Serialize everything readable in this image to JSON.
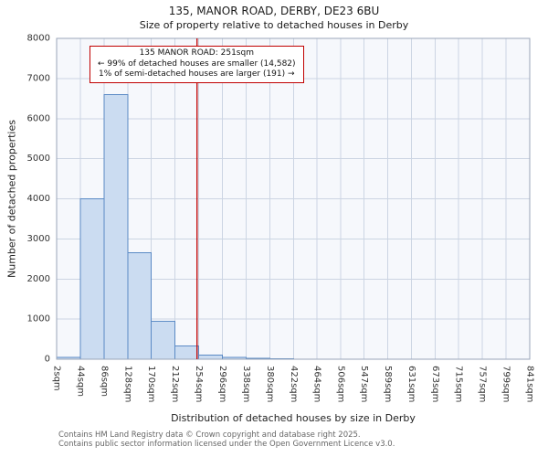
{
  "chart_data": {
    "type": "bar",
    "title": "135, MANOR ROAD, DERBY, DE23 6BU",
    "subtitle": "Size of property relative to detached houses in Derby",
    "xlabel": "Distribution of detached houses by size in Derby",
    "ylabel": "Number of detached properties",
    "bin_edges_sqm": [
      2,
      44,
      86,
      128,
      170,
      212,
      254,
      296,
      338,
      380,
      422,
      464,
      506,
      547,
      589,
      631,
      673,
      715,
      757,
      799,
      841
    ],
    "tick_labels": [
      "2sqm",
      "44sqm",
      "86sqm",
      "128sqm",
      "170sqm",
      "212sqm",
      "254sqm",
      "296sqm",
      "338sqm",
      "380sqm",
      "422sqm",
      "464sqm",
      "506sqm",
      "547sqm",
      "589sqm",
      "631sqm",
      "673sqm",
      "715sqm",
      "757sqm",
      "799sqm",
      "841sqm"
    ],
    "values": [
      50,
      4000,
      6600,
      2650,
      950,
      330,
      100,
      50,
      20,
      10,
      5,
      3,
      2,
      1,
      0,
      0,
      0,
      0,
      0,
      0
    ],
    "ylim": [
      0,
      8000
    ],
    "yticks": [
      0,
      1000,
      2000,
      3000,
      4000,
      5000,
      6000,
      7000,
      8000
    ],
    "grid": true,
    "legend": null,
    "marker": {
      "value_sqm": 251,
      "color": "#c00000"
    },
    "annotation": {
      "line1": "135 MANOR ROAD: 251sqm",
      "line2": "← 99% of detached houses are smaller (14,582)",
      "line3": "1% of semi-detached houses are larger (191) →"
    },
    "colors": {
      "bar_fill": "#cbdcf1",
      "bar_stroke": "#5b8ac5",
      "grid": "#ccd5e3",
      "plot_bg": "#f6f8fc",
      "plot_border": "#9aa5b8"
    }
  },
  "footer": {
    "line1": "Contains HM Land Registry data © Crown copyright and database right 2025.",
    "line2": "Contains public sector information licensed under the Open Government Licence v3.0."
  }
}
